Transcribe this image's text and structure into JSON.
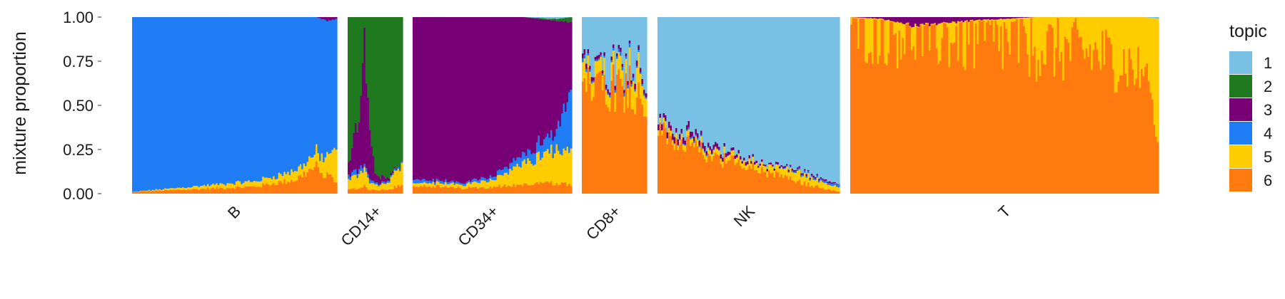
{
  "chart_data": {
    "type": "stacked-bar (structure plot)",
    "ylabel": "mixture proportion",
    "ylim": [
      0,
      1
    ],
    "yticks": [
      "0.00",
      "0.25",
      "0.50",
      "0.75",
      "1.00"
    ],
    "legend": {
      "title": "topic",
      "position": "right",
      "entries": [
        "1",
        "2",
        "3",
        "4",
        "5",
        "6"
      ]
    },
    "topic_colors": {
      "1": "#78c1e5",
      "2": "#1f7a1f",
      "3": "#770077",
      "4": "#1f7df5",
      "5": "#ffcc00",
      "6": "#ff7b0f"
    },
    "groups": [
      {
        "name": "B",
        "profile": {
          "t": [
            0,
            0.2,
            0.4,
            0.6,
            0.7,
            0.8,
            0.85,
            0.9,
            0.95,
            1.0
          ],
          "t6": [
            0.01,
            0.02,
            0.03,
            0.04,
            0.06,
            0.08,
            0.12,
            0.15,
            0.1,
            0.08
          ],
          "t5": [
            0.0,
            0.01,
            0.02,
            0.03,
            0.04,
            0.05,
            0.06,
            0.08,
            0.1,
            0.18
          ],
          "t3": [
            0.0,
            0.0,
            0.0,
            0.0,
            0.0,
            0.0,
            0.0,
            0.0,
            0.02,
            0.01
          ]
        }
      },
      {
        "name": "CD14+",
        "profile": {
          "t": [
            0,
            0.2,
            0.3,
            0.4,
            0.5,
            0.7,
            1.0
          ],
          "t6": [
            0.02,
            0.03,
            0.05,
            0.02,
            0.02,
            0.02,
            0.05
          ],
          "t5": [
            0.05,
            0.08,
            0.1,
            0.05,
            0.03,
            0.03,
            0.12
          ],
          "t3": [
            0.05,
            0.3,
            0.7,
            0.25,
            0.05,
            0.02,
            0.0
          ],
          "t4": [
            0.02,
            0.03,
            0.02,
            0.02,
            0.01,
            0.01,
            0.01
          ]
        }
      },
      {
        "name": "CD34+",
        "profile": {
          "t": [
            0,
            0.3,
            0.5,
            0.7,
            0.9,
            1.0
          ],
          "t6": [
            0.05,
            0.03,
            0.04,
            0.05,
            0.06,
            0.05
          ],
          "t5": [
            0.02,
            0.02,
            0.04,
            0.12,
            0.18,
            0.2
          ],
          "t4": [
            0.02,
            0.01,
            0.02,
            0.05,
            0.1,
            0.35
          ],
          "t1": [
            0.0,
            0.0,
            0.0,
            0.0,
            0.01,
            0.0
          ],
          "t2": [
            0.0,
            0.0,
            0.0,
            0.0,
            0.01,
            0.03
          ]
        }
      },
      {
        "name": "CD8+",
        "profile": {
          "t": [
            0,
            0.2,
            0.4,
            0.6,
            0.75,
            0.85,
            1.0
          ],
          "t6": [
            0.5,
            0.7,
            0.62,
            0.6,
            0.62,
            0.55,
            0.48
          ],
          "t5": [
            0.1,
            0.08,
            0.08,
            0.12,
            0.1,
            0.2,
            0.08
          ],
          "t3": [
            0.03,
            0.02,
            0.02,
            0.02,
            0.02,
            0.03,
            0.02
          ],
          "t4": [
            0.02,
            0.01,
            0.01,
            0.02,
            0.02,
            0.01,
            0.01
          ]
        }
      },
      {
        "name": "NK",
        "profile": {
          "t": [
            0,
            0.2,
            0.4,
            0.6,
            0.8,
            0.95,
            1.0
          ],
          "t6": [
            0.35,
            0.25,
            0.18,
            0.12,
            0.06,
            0.02,
            0.01
          ],
          "t5": [
            0.03,
            0.03,
            0.03,
            0.04,
            0.05,
            0.03,
            0.02
          ],
          "t3": [
            0.03,
            0.03,
            0.02,
            0.01,
            0.01,
            0.01,
            0.0
          ],
          "t4": [
            0.0,
            0.01,
            0.0,
            0.0,
            0.01,
            0.01,
            0.02
          ]
        }
      },
      {
        "name": "T",
        "profile": {
          "t": [
            0,
            0.1,
            0.2,
            0.4,
            0.6,
            0.8,
            0.9,
            0.95,
            0.98,
            1.0
          ],
          "t6": [
            0.98,
            0.95,
            0.93,
            0.88,
            0.84,
            0.79,
            0.74,
            0.66,
            0.5,
            0.3
          ],
          "t3": [
            0.0,
            0.01,
            0.05,
            0.02,
            0.0,
            0.0,
            0.0,
            0.0,
            0.0,
            0.0
          ],
          "t1": [
            0.0,
            0.0,
            0.0,
            0.0,
            0.0,
            0.0,
            0.0,
            0.0,
            0.005,
            0.01
          ]
        }
      }
    ]
  }
}
